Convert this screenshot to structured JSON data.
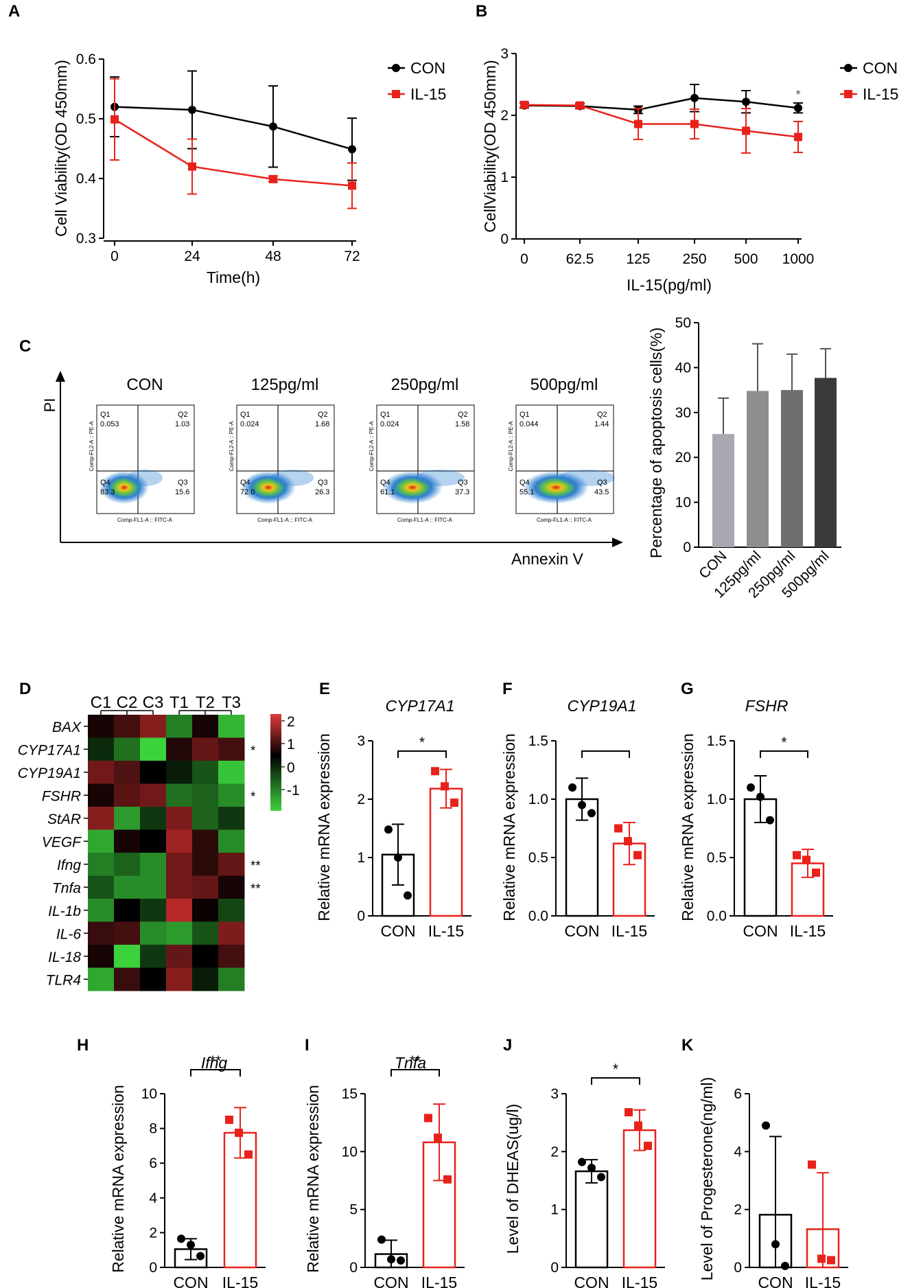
{
  "colors": {
    "con": "#000000",
    "il15": "#e8221b",
    "axis": "#000000"
  },
  "panel_labels": [
    "A",
    "B",
    "C",
    "D",
    "E",
    "F",
    "G",
    "H",
    "I",
    "J",
    "K"
  ],
  "chart_data": [
    {
      "id": "A",
      "type": "line",
      "xlabel": "Time(h)",
      "ylabel": "Cell Viability(OD 450mm)",
      "x": [
        0,
        24,
        48,
        72
      ],
      "xticks": [
        "0",
        "24",
        "48",
        "72"
      ],
      "ylim": [
        0.3,
        0.6
      ],
      "yticks": [
        "0.3",
        "0.4",
        "0.5",
        "0.6"
      ],
      "legend": [
        "CON",
        "IL-15"
      ],
      "series": [
        {
          "name": "CON",
          "values": [
            0.52,
            0.515,
            0.487,
            0.449
          ],
          "err": [
            0.05,
            0.065,
            0.068,
            0.052
          ]
        },
        {
          "name": "IL-15",
          "values": [
            0.499,
            0.42,
            0.399,
            0.388
          ],
          "err": [
            0.068,
            0.046,
            0.005,
            0.038
          ]
        }
      ]
    },
    {
      "id": "B",
      "type": "line",
      "xlabel": "IL-15(pg/ml)",
      "ylabel": "CellViability(OD 450mm)",
      "categories": [
        "0",
        "62.5",
        "125",
        "250",
        "500",
        "1000"
      ],
      "ylim": [
        0,
        3
      ],
      "yticks": [
        "0",
        "1",
        "2",
        "3"
      ],
      "legend": [
        "CON",
        "IL-15"
      ],
      "annotation": "*",
      "series": [
        {
          "name": "CON",
          "values": [
            2.16,
            2.15,
            2.09,
            2.28,
            2.22,
            2.12
          ],
          "err": [
            0.04,
            0.04,
            0.06,
            0.22,
            0.18,
            0.08
          ]
        },
        {
          "name": "IL-15",
          "values": [
            2.17,
            2.16,
            1.86,
            1.86,
            1.75,
            1.65
          ],
          "err": [
            0.04,
            0.04,
            0.25,
            0.24,
            0.36,
            0.25
          ]
        }
      ]
    },
    {
      "id": "C",
      "type": "bar",
      "ylabel": "Percentage of apoptosis cells(%)",
      "categories": [
        "CON",
        "125pg/ml",
        "250pg/ml",
        "500pg/ml"
      ],
      "values": [
        25.2,
        34.8,
        35.0,
        37.7
      ],
      "err": [
        8.0,
        10.5,
        8.0,
        6.5
      ],
      "ylim": [
        0,
        50
      ],
      "yticks": [
        "0",
        "10",
        "20",
        "30",
        "40",
        "50"
      ],
      "bar_colors": [
        "#a9a8b0",
        "#8e8e90",
        "#6f6f71",
        "#3a3a3c"
      ]
    },
    {
      "id": "D",
      "type": "heatmap",
      "columns": [
        "C1",
        "C2",
        "C3",
        "T1",
        "T2",
        "T3"
      ],
      "rows": [
        "BAX",
        "CYP17A1",
        "CYP19A1",
        "FSHR",
        "StAR",
        "VEGF",
        "Ifng",
        "Tnfa",
        "IL-1b",
        "IL-6",
        "IL-18",
        "TLR4"
      ],
      "row_stars": [
        "",
        "*",
        "",
        "*",
        "",
        "",
        "**",
        "**",
        "",
        "",
        "",
        ""
      ],
      "values": [
        [
          0.2,
          0.6,
          1.2,
          -0.9,
          0.2,
          -1.3
        ],
        [
          -0.3,
          -0.8,
          -1.5,
          0.3,
          0.9,
          0.6
        ],
        [
          1.0,
          0.7,
          0.0,
          -0.2,
          -0.6,
          -1.4
        ],
        [
          0.2,
          0.8,
          1.0,
          -0.8,
          -0.7,
          -1.0
        ],
        [
          1.2,
          -1.1,
          -0.4,
          1.1,
          -0.7,
          -0.4
        ],
        [
          -1.2,
          0.2,
          0.0,
          1.4,
          0.4,
          -1.0
        ],
        [
          -0.9,
          -0.7,
          -1.0,
          1.0,
          0.4,
          0.9
        ],
        [
          -0.6,
          -1.0,
          -1.0,
          1.0,
          0.9,
          0.2
        ],
        [
          -1.0,
          0.0,
          -0.4,
          1.6,
          0.1,
          -0.5
        ],
        [
          0.5,
          0.6,
          -1.0,
          -1.1,
          -0.6,
          1.1
        ],
        [
          0.2,
          -1.5,
          -0.4,
          0.9,
          0.0,
          0.6
        ],
        [
          -1.2,
          0.5,
          0.0,
          1.2,
          -0.2,
          -0.9
        ]
      ],
      "colorbar_ticks": [
        "2",
        "1",
        "0",
        "-1"
      ],
      "vmin": -1.5,
      "vmax": 2
    },
    {
      "id": "E",
      "type": "bar",
      "title": "CYP17A1",
      "ylabel": "Relative mRNA expression",
      "categories": [
        "CON",
        "IL-15"
      ],
      "values": [
        1.05,
        2.18
      ],
      "err": [
        0.52,
        0.33
      ],
      "points": [
        [
          1.48,
          1.0,
          0.35
        ],
        [
          2.48,
          2.22,
          1.94
        ]
      ],
      "ylim": [
        0,
        3
      ],
      "yticks": [
        "0",
        "1",
        "2",
        "3"
      ],
      "sig": "*"
    },
    {
      "id": "F",
      "type": "bar",
      "title": "CYP19A1",
      "ylabel": "Relative mRNA expression",
      "categories": [
        "CON",
        "IL-15"
      ],
      "values": [
        1.0,
        0.62
      ],
      "err": [
        0.18,
        0.18
      ],
      "points": [
        [
          1.1,
          0.95,
          0.88
        ],
        [
          0.75,
          0.64,
          0.52
        ]
      ],
      "ylim": [
        0,
        1.5
      ],
      "yticks": [
        "0.0",
        "0.5",
        "1.0",
        "1.5"
      ],
      "sig": ""
    },
    {
      "id": "G",
      "type": "bar",
      "title": "FSHR",
      "ylabel": "Relative mRNA expression",
      "categories": [
        "CON",
        "IL-15"
      ],
      "values": [
        1.0,
        0.45
      ],
      "err": [
        0.2,
        0.12
      ],
      "points": [
        [
          1.1,
          1.02,
          0.82
        ],
        [
          0.52,
          0.48,
          0.37
        ]
      ],
      "ylim": [
        0,
        1.5
      ],
      "yticks": [
        "0.0",
        "0.5",
        "1.0",
        "1.5"
      ],
      "sig": "*"
    },
    {
      "id": "H",
      "type": "bar",
      "title": "Ifng",
      "ylabel": "Relative mRNA expression",
      "categories": [
        "CON",
        "IL-15"
      ],
      "values": [
        1.05,
        7.75
      ],
      "err": [
        0.6,
        1.45
      ],
      "points": [
        [
          1.65,
          1.3,
          0.65
        ],
        [
          8.5,
          7.75,
          6.5
        ]
      ],
      "ylim": [
        0,
        10
      ],
      "yticks": [
        "0",
        "2",
        "4",
        "6",
        "8",
        "10"
      ],
      "sig": "**"
    },
    {
      "id": "I",
      "type": "bar",
      "title": "Tnfa",
      "ylabel": "Relative mRNA expression",
      "categories": [
        "CON",
        "IL-15"
      ],
      "values": [
        1.15,
        10.8
      ],
      "err": [
        1.2,
        3.3
      ],
      "points": [
        [
          2.4,
          0.7,
          0.6
        ],
        [
          12.9,
          11.2,
          7.6
        ]
      ],
      "ylim": [
        0,
        15
      ],
      "yticks": [
        "0",
        "5",
        "10",
        "15"
      ],
      "sig": "**"
    },
    {
      "id": "J",
      "type": "bar",
      "ylabel": "Level of DHEAS(ug/l)",
      "categories": [
        "CON",
        "IL-15"
      ],
      "values": [
        1.66,
        2.37
      ],
      "err": [
        0.2,
        0.35
      ],
      "points": [
        [
          1.82,
          1.72,
          1.56
        ],
        [
          2.68,
          2.45,
          2.1
        ]
      ],
      "ylim": [
        0,
        3
      ],
      "yticks": [
        "0",
        "1",
        "2",
        "3"
      ],
      "sig": "*"
    },
    {
      "id": "K",
      "type": "bar",
      "ylabel": "Level of Progesterone(ng/ml)",
      "categories": [
        "CON",
        "IL-15"
      ],
      "values": [
        1.82,
        1.32
      ],
      "err": [
        2.7,
        1.95
      ],
      "points": [
        [
          4.9,
          0.8,
          0.05
        ],
        [
          3.55,
          0.3,
          0.25
        ]
      ],
      "ylim": [
        0,
        6
      ],
      "yticks": [
        "0",
        "2",
        "4",
        "6"
      ],
      "sig": ""
    }
  ],
  "flow": {
    "x_axis_label": "Annexin V",
    "y_axis_label": "PI",
    "x_param": "Comp-FL1-A :: FITC-A",
    "y_param": "Comp-FL2-A :: PE-A",
    "panels": [
      {
        "title": "CON",
        "q1": "0.053",
        "q2": "1.03",
        "q3": "15.6",
        "q4": "83.3"
      },
      {
        "title": "125pg/ml",
        "q1": "0.024",
        "q2": "1.68",
        "q3": "26.3",
        "q4": "72.0"
      },
      {
        "title": "250pg/ml",
        "q1": "0.024",
        "q2": "1.58",
        "q3": "37.3",
        "q4": "61.1"
      },
      {
        "title": "500pg/ml",
        "q1": "0.044",
        "q2": "1.44",
        "q3": "43.5",
        "q4": "55.1"
      }
    ]
  }
}
